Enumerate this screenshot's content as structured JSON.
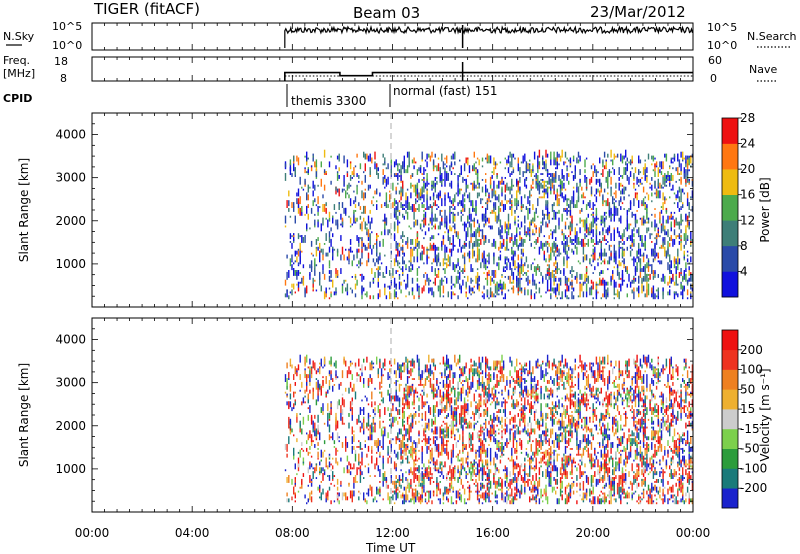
{
  "header": {
    "radar": "TIGER (fitACF)",
    "beam": "Beam 03",
    "date": "23/Mar/2012"
  },
  "sky_panel": {
    "left_label": "N.Sky",
    "right_label": "N.Search",
    "left_ticks": [
      "10^5",
      "10^0"
    ],
    "right_ticks": [
      "10^5",
      "10^0"
    ]
  },
  "freq_panel": {
    "left_label_1": "Freq.",
    "left_label_2": "[MHz]",
    "right_label": "Nave",
    "left_ticks": [
      "18",
      "8"
    ],
    "right_ticks": [
      "60",
      "0"
    ]
  },
  "cpid_panel": {
    "label": "CPID",
    "modes": [
      "themis 3300",
      "normal (fast) 151"
    ]
  },
  "chart_data": [
    {
      "type": "line",
      "panel": "N.Sky / N.Search",
      "log_scale": true,
      "x_range_hours": [
        0,
        24
      ],
      "on_air_from_hours": 7.7,
      "n_sky_level": "~10^5 with fluctuations after 07:45 UT",
      "n_search_level": "dotted near 10^0"
    },
    {
      "type": "line",
      "panel": "Freq. / Nave",
      "segments": [
        {
          "x0": 7.7,
          "x1": 9.9,
          "freq_mhz": 11.5
        },
        {
          "x0": 9.9,
          "x1": 11.2,
          "freq_mhz": 10.2
        },
        {
          "x0": 11.2,
          "x1": 24,
          "freq_mhz": 11.5
        }
      ],
      "nave_level": 10
    },
    {
      "type": "heatmap",
      "panel": "Power",
      "ylabel": "Slant Range [km]",
      "ytick_labels": [
        "1000",
        "2000",
        "3000",
        "4000"
      ],
      "ylim": [
        0,
        4500
      ],
      "colorbar_label": "Power [dB]",
      "colorbar_ticks": [
        "4",
        "8",
        "12",
        "16",
        "20",
        "24",
        "28"
      ],
      "colorbar_colors": [
        "#1111dd",
        "#2a4aa8",
        "#3e7e78",
        "#4caa4c",
        "#eebb11",
        "#ff7711",
        "#ee1111"
      ],
      "data_window_hours": [
        7.7,
        24
      ],
      "data_range_km": [
        180,
        3500
      ]
    },
    {
      "type": "heatmap",
      "panel": "Velocity",
      "ylabel": "Slant Range [km]",
      "ytick_labels": [
        "1000",
        "2000",
        "3000",
        "4000"
      ],
      "ylim": [
        0,
        4500
      ],
      "colorbar_label": "Velocity [m s⁻¹]",
      "colorbar_ticks": [
        "200",
        "100",
        "50",
        "15",
        "-15",
        "-50",
        "-100",
        "-200"
      ],
      "colorbar_colors": [
        "#1a22cc",
        "#1a7a7a",
        "#2c9c3c",
        "#7cd04c",
        "#cccccc",
        "#eeb030",
        "#ee8020",
        "#ee3320",
        "#ee1111"
      ],
      "data_window_hours": [
        7.7,
        24
      ],
      "data_range_km": [
        180,
        3500
      ]
    }
  ],
  "xaxis": {
    "tick_labels": [
      "00:00",
      "04:00",
      "08:00",
      "12:00",
      "16:00",
      "20:00",
      "00:00"
    ],
    "title": "Time UT"
  }
}
